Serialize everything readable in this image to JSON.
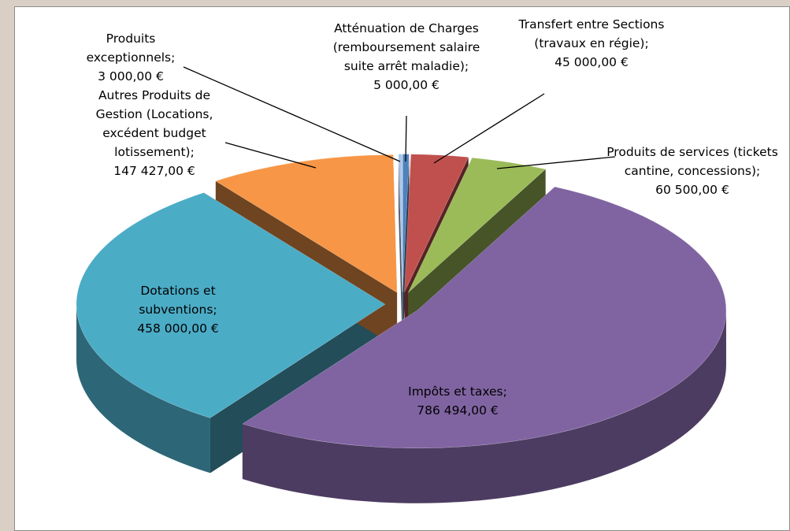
{
  "chart_data": {
    "type": "pie3d",
    "categories": [
      "Atténuation de Charges (remboursement salaire suite arrêt maladie);",
      "Transfert entre Sections (travaux en régie);",
      "Produits de services (tickets cantine, concessions);",
      "Impôts et taxes;",
      "Dotations et subventions;",
      "Autres Produits de Gestion (Locations, excédent budget lotissement);",
      "Produits exceptionnels;"
    ],
    "values": [
      5000,
      45000,
      60500,
      786494,
      458000,
      147427,
      3000
    ],
    "value_labels": [
      "5 000,00 €",
      "45 000,00 €",
      "60 500,00 €",
      "786 494,00 €",
      "458 000,00 €",
      "147 427,00 €",
      "3 000,00 €"
    ],
    "colors": [
      "#4f81bd",
      "#c0504d",
      "#9bbb59",
      "#8064a2",
      "#4bacc6",
      "#f79646",
      "#a9c4e6"
    ],
    "exploded": true
  }
}
